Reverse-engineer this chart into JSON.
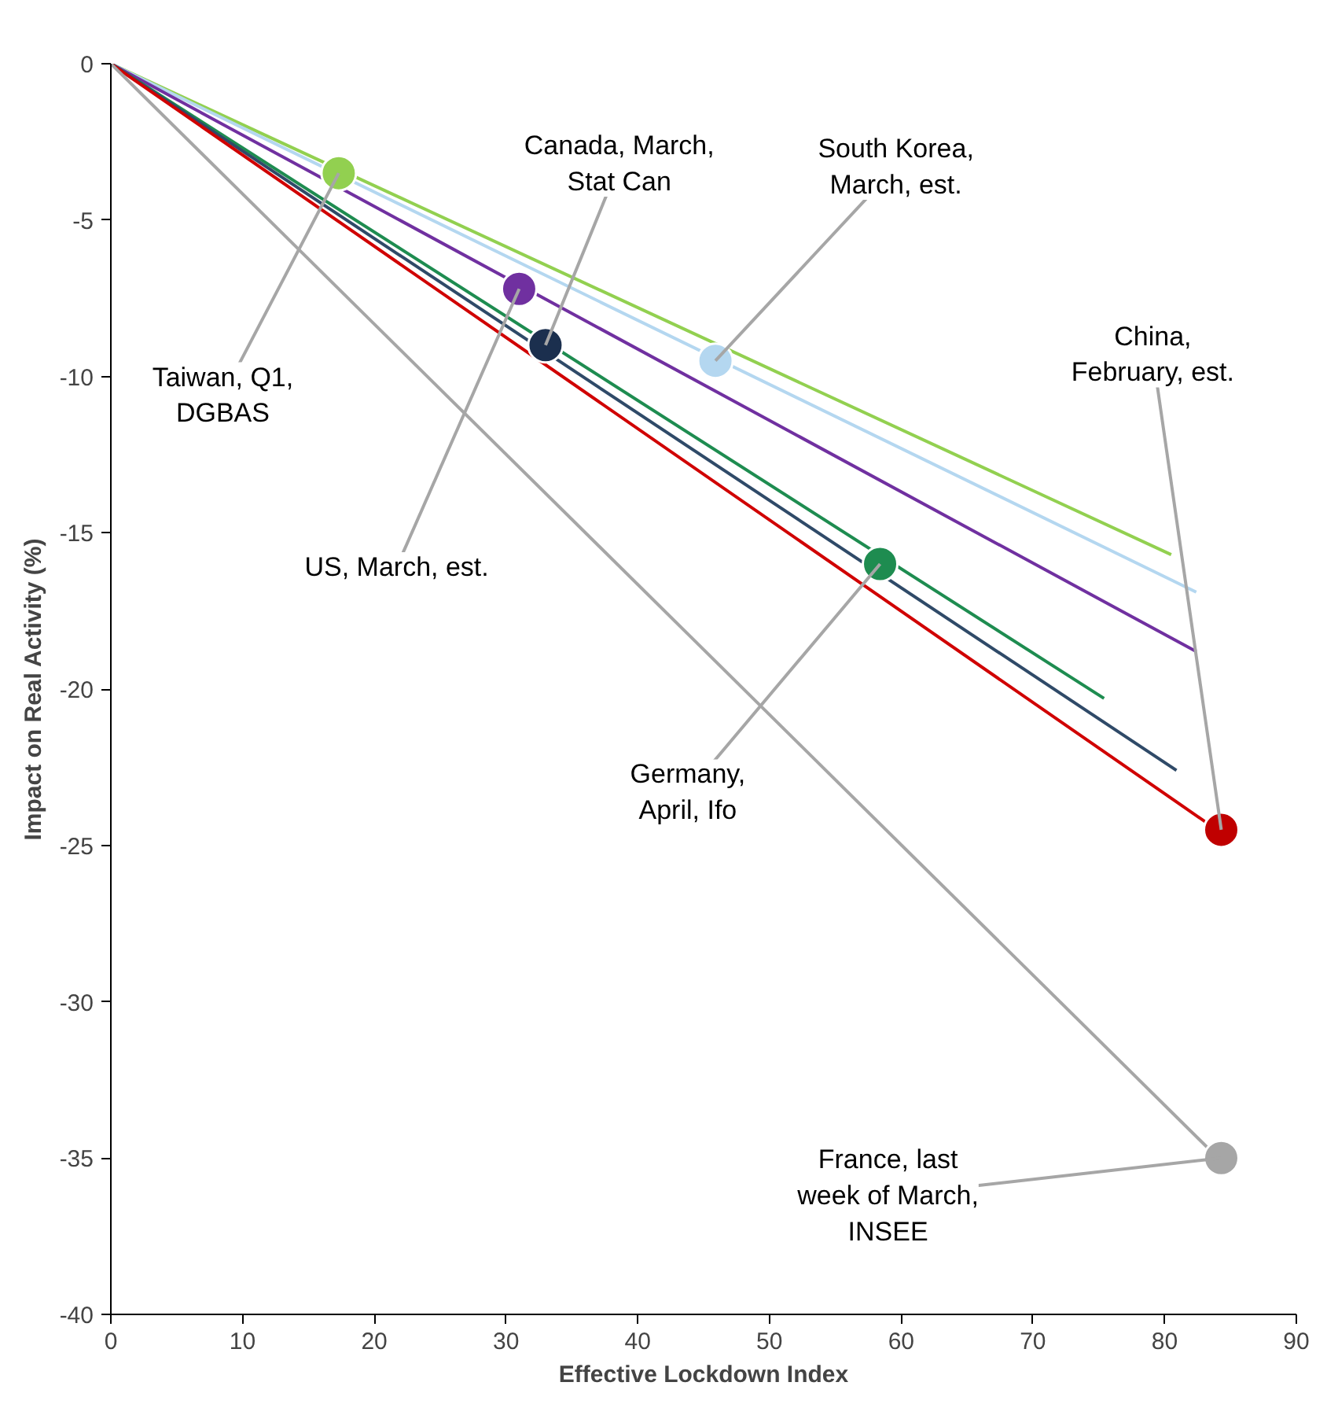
{
  "chart_data": {
    "type": "line",
    "xlabel": "Effective Lockdown Index",
    "ylabel": "Impact on Real Activity (%)",
    "xlim": [
      0,
      90
    ],
    "ylim": [
      -40,
      0
    ],
    "xticks": [
      0,
      10,
      20,
      30,
      40,
      50,
      60,
      70,
      80,
      90
    ],
    "yticks": [
      0,
      -5,
      -10,
      -15,
      -20,
      -25,
      -30,
      -35,
      -40
    ],
    "grid": false,
    "line_style": "solid",
    "series": [
      {
        "color": "#92d050",
        "x": [
          0,
          80.5
        ],
        "values": [
          0,
          -15.7
        ]
      },
      {
        "color": "#b4d7f0",
        "x": [
          0,
          82.4
        ],
        "values": [
          0,
          -16.9
        ]
      },
      {
        "color": "#7030a0",
        "x": [
          0,
          82.4
        ],
        "values": [
          0,
          -18.8
        ]
      },
      {
        "color": "#1e8c50",
        "x": [
          0,
          75.4
        ],
        "values": [
          0,
          -20.3
        ]
      },
      {
        "color": "#2f4a68",
        "x": [
          0,
          80.9
        ],
        "values": [
          0,
          -22.6
        ]
      },
      {
        "color": "#d00000",
        "x": [
          0,
          84.3
        ],
        "values": [
          0,
          -24.6
        ]
      },
      {
        "color": "#a6a6a6",
        "x": [
          0,
          84.3
        ],
        "values": [
          0,
          -35.1
        ]
      },
      {
        "type": "scatter",
        "marker": "circle",
        "color": "#92d050",
        "x": [
          17.3
        ],
        "values": [
          -3.5
        ]
      },
      {
        "type": "scatter",
        "marker": "circle",
        "color": "#b4d7f0",
        "x": [
          45.9
        ],
        "values": [
          -9.5
        ]
      },
      {
        "type": "scatter",
        "marker": "circle",
        "color": "#7030a0",
        "x": [
          31.0
        ],
        "values": [
          -7.2
        ]
      },
      {
        "type": "scatter",
        "marker": "circle",
        "color": "#1e8c50",
        "x": [
          58.4
        ],
        "values": [
          -16.0
        ]
      },
      {
        "type": "scatter",
        "marker": "circle",
        "color": "#1b2f4e",
        "x": [
          33.0
        ],
        "values": [
          -9.0
        ]
      },
      {
        "type": "scatter",
        "marker": "circle",
        "color": "#c00000",
        "x": [
          84.3
        ],
        "values": [
          -24.5
        ]
      },
      {
        "type": "scatter",
        "marker": "circle",
        "color": "#a6a6a6",
        "x": [
          84.3
        ],
        "values": [
          -35.0
        ]
      }
    ],
    "annotations": [
      {
        "text": "Taiwan, Q1,\nDGBAS",
        "x": 17.3,
        "y": -3.5
      },
      {
        "text": "South Korea,\nMarch, est.",
        "x": 45.9,
        "y": -9.5
      },
      {
        "text": "US, March, est.",
        "x": 31.0,
        "y": -7.2
      },
      {
        "text": "Germany,\nApril, Ifo",
        "x": 58.4,
        "y": -16.0
      },
      {
        "text": "Canada, March,\nStat Can",
        "x": 33.0,
        "y": -9.0
      },
      {
        "text": "China,\nFebruary, est.",
        "x": 84.3,
        "y": -24.5
      },
      {
        "text": "France, last\nweek of March,\nINSEE",
        "x": 84.3,
        "y": -35.0
      }
    ]
  }
}
